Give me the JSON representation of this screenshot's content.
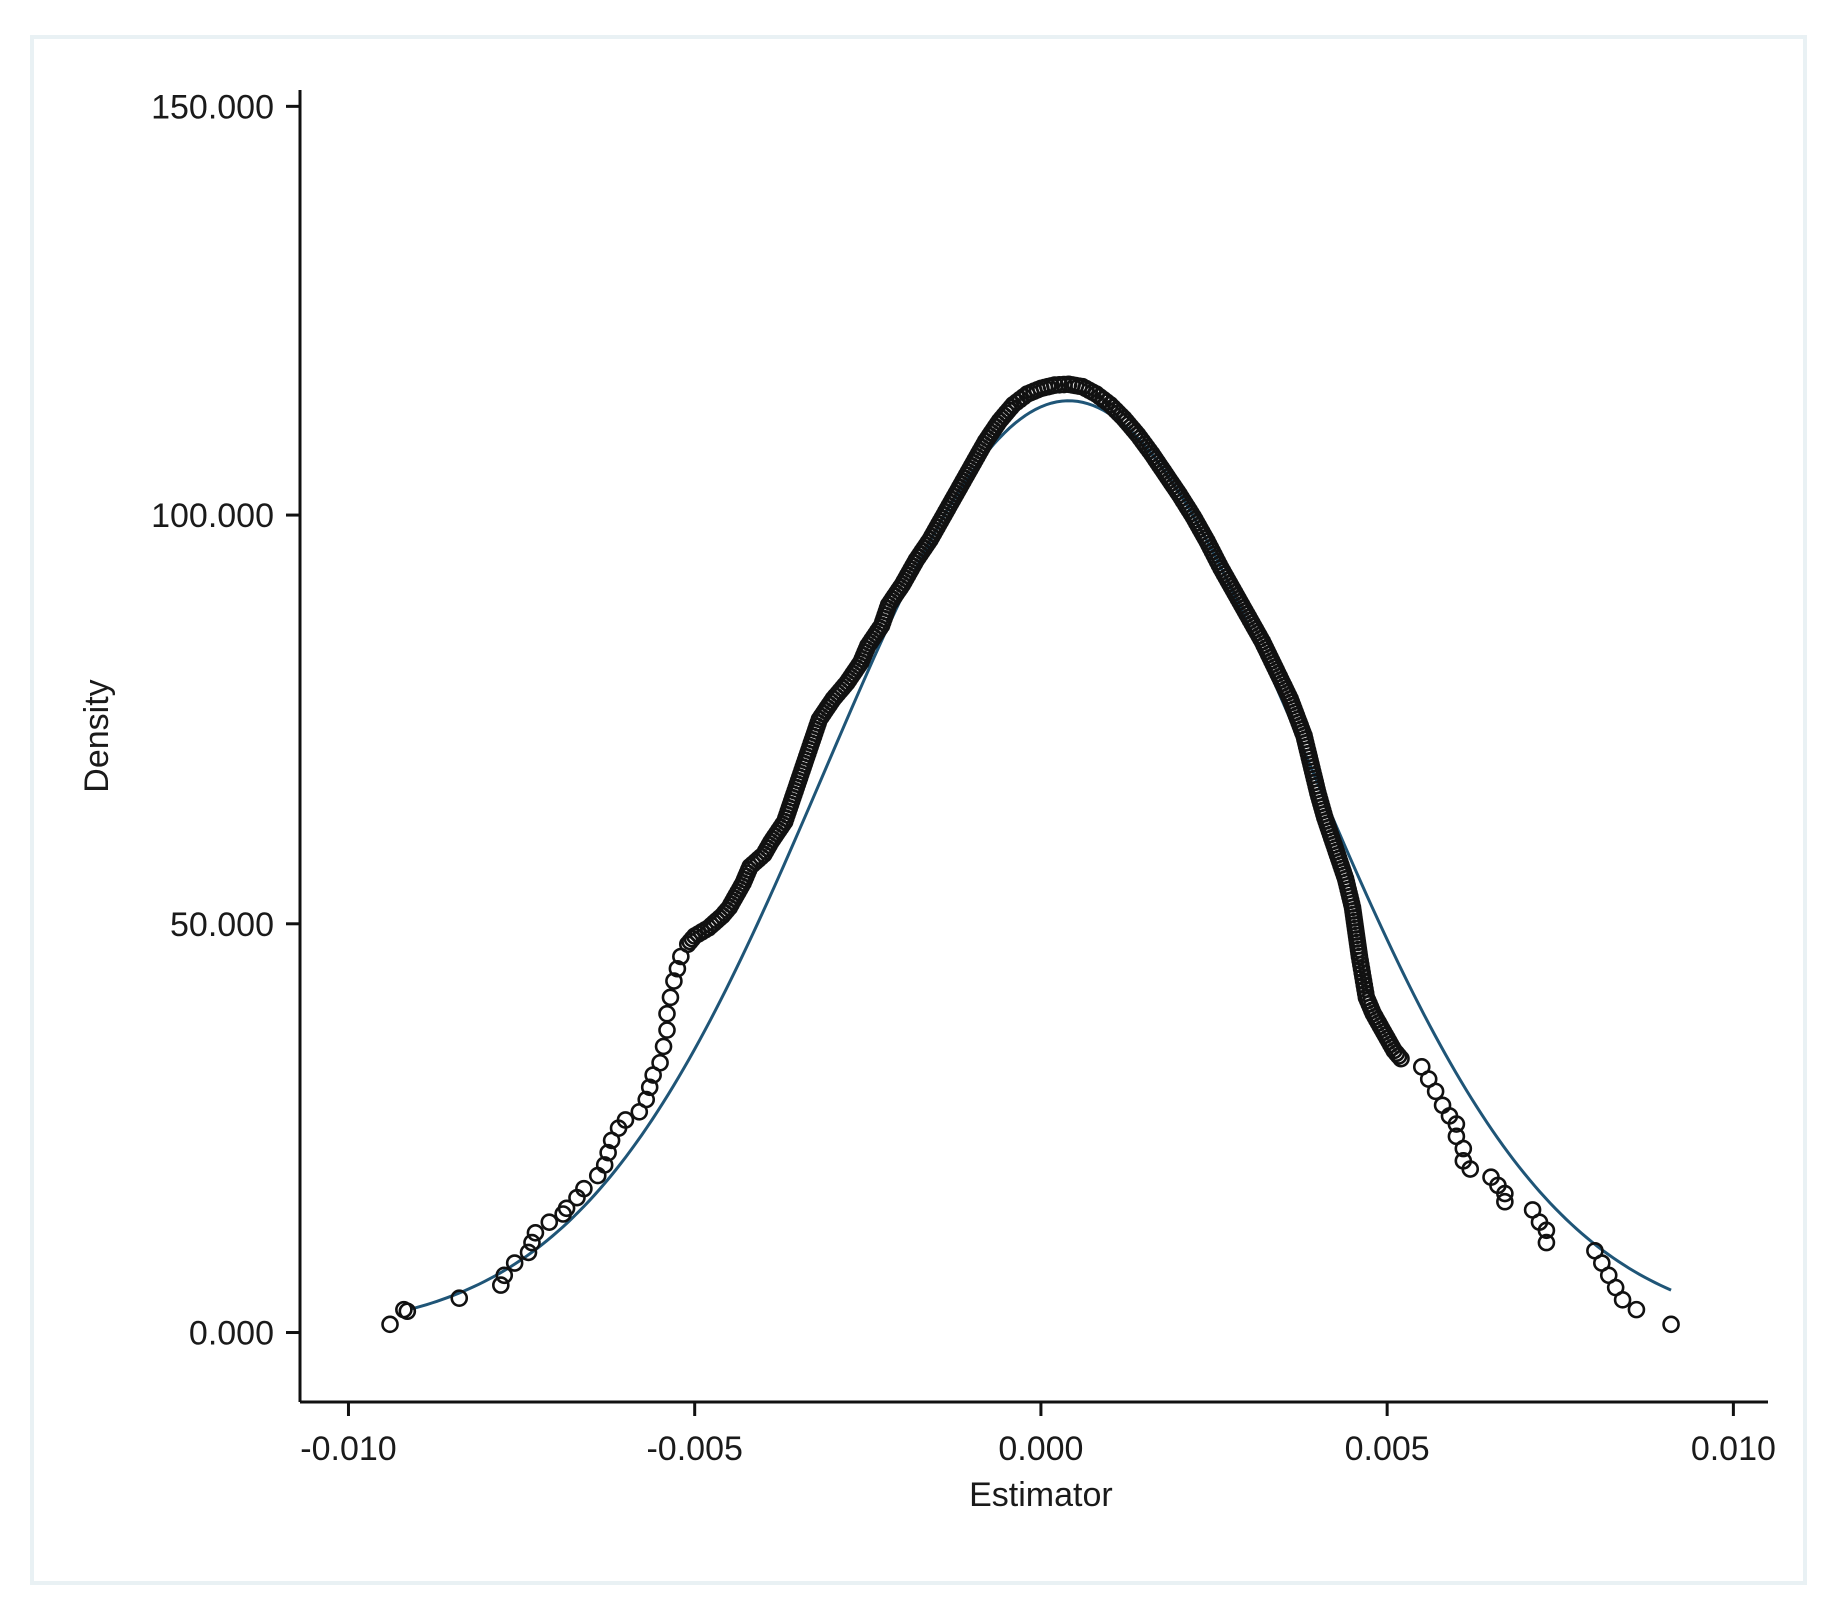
{
  "chart_data": {
    "type": "scatter",
    "title": "",
    "xlabel": "Estimator",
    "ylabel": "Density",
    "xlim": [
      -0.0107,
      0.0105
    ],
    "ylim": [
      -8.5,
      152
    ],
    "x_ticks": [
      "-0.010",
      "-0.005",
      "0.000",
      "0.005",
      "0.010"
    ],
    "x_tick_values": [
      -0.01,
      -0.005,
      0.0,
      0.005,
      0.01
    ],
    "y_ticks": [
      "0.000",
      "50.000",
      "100.000",
      "150.000"
    ],
    "y_tick_values": [
      0,
      50,
      100,
      150
    ],
    "grid": false,
    "colors": {
      "curve": "#1f5577",
      "markers": "#111111",
      "frame": "#e9f1f4"
    },
    "normal_curve": {
      "mean": 0.0004,
      "sd": 0.0035,
      "x_range": [
        -0.0091,
        0.0091
      ]
    },
    "kde_points": [
      [
        -0.0094,
        1.0
      ],
      [
        -0.0092,
        2.8
      ],
      [
        -0.00915,
        2.6
      ],
      [
        -0.0084,
        4.2
      ],
      [
        -0.0078,
        5.8
      ],
      [
        -0.00775,
        7.0
      ],
      [
        -0.0076,
        8.5
      ],
      [
        -0.0074,
        9.8
      ],
      [
        -0.00735,
        11.0
      ],
      [
        -0.0073,
        12.2
      ],
      [
        -0.0071,
        13.5
      ],
      [
        -0.0069,
        14.5
      ],
      [
        -0.00685,
        15.2
      ],
      [
        -0.0067,
        16.5
      ],
      [
        -0.0066,
        17.6
      ],
      [
        -0.0064,
        19.2
      ],
      [
        -0.0063,
        20.5
      ],
      [
        -0.00625,
        22.0
      ],
      [
        -0.0062,
        23.5
      ],
      [
        -0.0061,
        25.0
      ],
      [
        -0.006,
        26.0
      ],
      [
        -0.0058,
        27.0
      ],
      [
        -0.0057,
        28.5
      ],
      [
        -0.00565,
        30.0
      ],
      [
        -0.0056,
        31.5
      ],
      [
        -0.0055,
        33.0
      ],
      [
        -0.00545,
        35.0
      ],
      [
        -0.0054,
        37.0
      ],
      [
        -0.0054,
        39.0
      ],
      [
        -0.00535,
        41.0
      ],
      [
        -0.0053,
        43.0
      ],
      [
        -0.00525,
        44.5
      ],
      [
        -0.0052,
        46.0
      ],
      [
        -0.0051,
        47.5
      ],
      [
        -0.005,
        48.5
      ],
      [
        -0.0048,
        49.5
      ],
      [
        -0.0046,
        51.0
      ],
      [
        -0.0045,
        52.0
      ],
      [
        -0.0044,
        53.5
      ],
      [
        -0.0043,
        55.0
      ],
      [
        -0.0042,
        57.0
      ],
      [
        -0.004,
        58.5
      ],
      [
        -0.0039,
        60.0
      ],
      [
        -0.0037,
        62.5
      ],
      [
        -0.0036,
        65.0
      ],
      [
        -0.0035,
        67.5
      ],
      [
        -0.0034,
        70.0
      ],
      [
        -0.0033,
        72.5
      ],
      [
        -0.0032,
        75.0
      ],
      [
        -0.003,
        77.5
      ],
      [
        -0.0028,
        79.5
      ],
      [
        -0.0026,
        82.0
      ],
      [
        -0.0025,
        84.0
      ],
      [
        -0.0023,
        86.5
      ],
      [
        -0.0022,
        89.0
      ],
      [
        -0.002,
        91.5
      ],
      [
        -0.0018,
        94.5
      ],
      [
        -0.0016,
        97.0
      ],
      [
        -0.0014,
        100.0
      ],
      [
        -0.0012,
        103.0
      ],
      [
        -0.001,
        106.0
      ],
      [
        -0.0008,
        109.0
      ],
      [
        -0.0006,
        111.5
      ],
      [
        -0.0004,
        113.5
      ],
      [
        -0.0002,
        114.8
      ],
      [
        0.0,
        115.5
      ],
      [
        0.0002,
        115.9
      ],
      [
        0.0004,
        116.0
      ],
      [
        0.0006,
        115.7
      ],
      [
        0.0008,
        114.8
      ],
      [
        0.001,
        113.5
      ],
      [
        0.0012,
        111.8
      ],
      [
        0.0014,
        109.8
      ],
      [
        0.0016,
        107.5
      ],
      [
        0.0018,
        105.0
      ],
      [
        0.002,
        102.5
      ],
      [
        0.0022,
        99.8
      ],
      [
        0.0024,
        96.8
      ],
      [
        0.0026,
        93.5
      ],
      [
        0.0028,
        90.5
      ],
      [
        0.003,
        87.5
      ],
      [
        0.0032,
        84.5
      ],
      [
        0.0034,
        81.0
      ],
      [
        0.0036,
        77.5
      ],
      [
        0.0038,
        73.0
      ],
      [
        0.0039,
        69.5
      ],
      [
        0.004,
        66.0
      ],
      [
        0.0041,
        63.0
      ],
      [
        0.0042,
        60.5
      ],
      [
        0.0043,
        58.0
      ],
      [
        0.0044,
        55.5
      ],
      [
        0.0045,
        52.0
      ],
      [
        0.00455,
        49.0
      ],
      [
        0.0046,
        46.0
      ],
      [
        0.00465,
        43.5
      ],
      [
        0.0047,
        41.0
      ],
      [
        0.0048,
        39.0
      ],
      [
        0.0049,
        37.5
      ],
      [
        0.005,
        36.0
      ],
      [
        0.0051,
        34.5
      ],
      [
        0.0052,
        33.5
      ],
      [
        0.0055,
        32.5
      ],
      [
        0.0056,
        31.0
      ],
      [
        0.0057,
        29.5
      ],
      [
        0.0058,
        27.8
      ],
      [
        0.0059,
        26.5
      ],
      [
        0.006,
        25.5
      ],
      [
        0.006,
        24.0
      ],
      [
        0.0061,
        22.5
      ],
      [
        0.0061,
        21.0
      ],
      [
        0.0062,
        20.0
      ],
      [
        0.0065,
        19.0
      ],
      [
        0.0066,
        18.0
      ],
      [
        0.0067,
        17.0
      ],
      [
        0.0067,
        16.0
      ],
      [
        0.0071,
        15.0
      ],
      [
        0.0072,
        13.5
      ],
      [
        0.0073,
        12.5
      ],
      [
        0.0073,
        11.0
      ],
      [
        0.008,
        10.0
      ],
      [
        0.0081,
        8.5
      ],
      [
        0.0082,
        7.0
      ],
      [
        0.0083,
        5.5
      ],
      [
        0.0084,
        4.0
      ],
      [
        0.0086,
        2.8
      ],
      [
        0.0091,
        1.0
      ]
    ]
  }
}
